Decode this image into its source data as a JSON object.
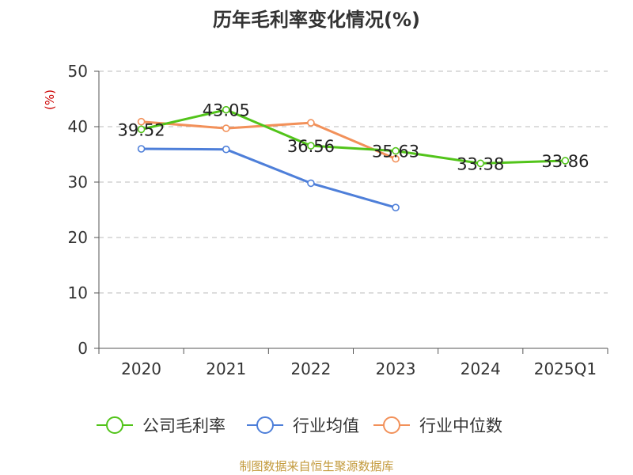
{
  "title": "历年毛利率变化情况(%)",
  "source": "制图数据来自恒生聚源数据库",
  "chart_data": {
    "type": "line",
    "title": "历年毛利率变化情况(%)",
    "ylabel": "(%)",
    "xlabel": "",
    "categories": [
      "2020",
      "2021",
      "2022",
      "2023",
      "2024",
      "2025Q1"
    ],
    "yticks": [
      "0",
      "10",
      "20",
      "30",
      "40",
      "50"
    ],
    "ylim": [
      0,
      50
    ],
    "grid": "horizontal dashed",
    "legend_position": "bottom",
    "series": [
      {
        "name": "公司毛利率",
        "color": "#52c41a",
        "values": [
          39.52,
          43.05,
          36.56,
          35.63,
          33.38,
          33.86
        ],
        "labels": [
          "39.52",
          "43.05",
          "36.56",
          "35.63",
          "33.38",
          "33.86"
        ]
      },
      {
        "name": "行业均值",
        "color": "#4e7fd9",
        "values": [
          36.0,
          35.9,
          29.8,
          25.4,
          null,
          null
        ]
      },
      {
        "name": "行业中位数",
        "color": "#f2915a",
        "values": [
          40.9,
          39.7,
          40.7,
          34.2,
          null,
          null
        ]
      }
    ]
  }
}
